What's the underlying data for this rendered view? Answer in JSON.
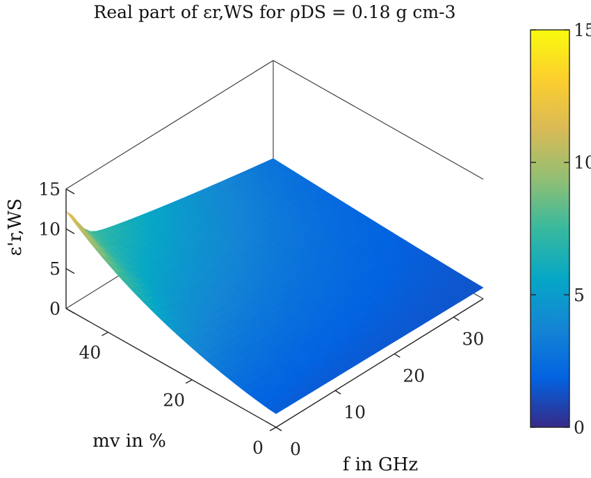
{
  "chart_data": {
    "type": "surface",
    "title": "Real part of εr,WS for ρDS = 0.18 g cm-3",
    "xlabel": "f in GHz",
    "ylabel": "mv in %",
    "zlabel": "ε'r,WS",
    "x_ticks": [
      "0",
      "10",
      "20",
      "30"
    ],
    "y_ticks": [
      "0",
      "20",
      "40"
    ],
    "z_ticks": [
      "0",
      "5",
      "10",
      "15"
    ],
    "colorbar_ticks": [
      "0",
      "5",
      "10",
      "15"
    ],
    "xlim": [
      0,
      35
    ],
    "ylim": [
      0,
      50
    ],
    "zlim": [
      0,
      15
    ],
    "clim": [
      0,
      15
    ],
    "colormap": "parula",
    "grid": false,
    "box": true,
    "corner_samples": [
      {
        "f": 0,
        "mv": 0,
        "eps": 1.7
      },
      {
        "f": 35,
        "mv": 0,
        "eps": 1.4
      },
      {
        "f": 35,
        "mv": 50,
        "eps": 2.8
      },
      {
        "f": 0,
        "mv": 50,
        "eps": 12.2
      }
    ]
  }
}
